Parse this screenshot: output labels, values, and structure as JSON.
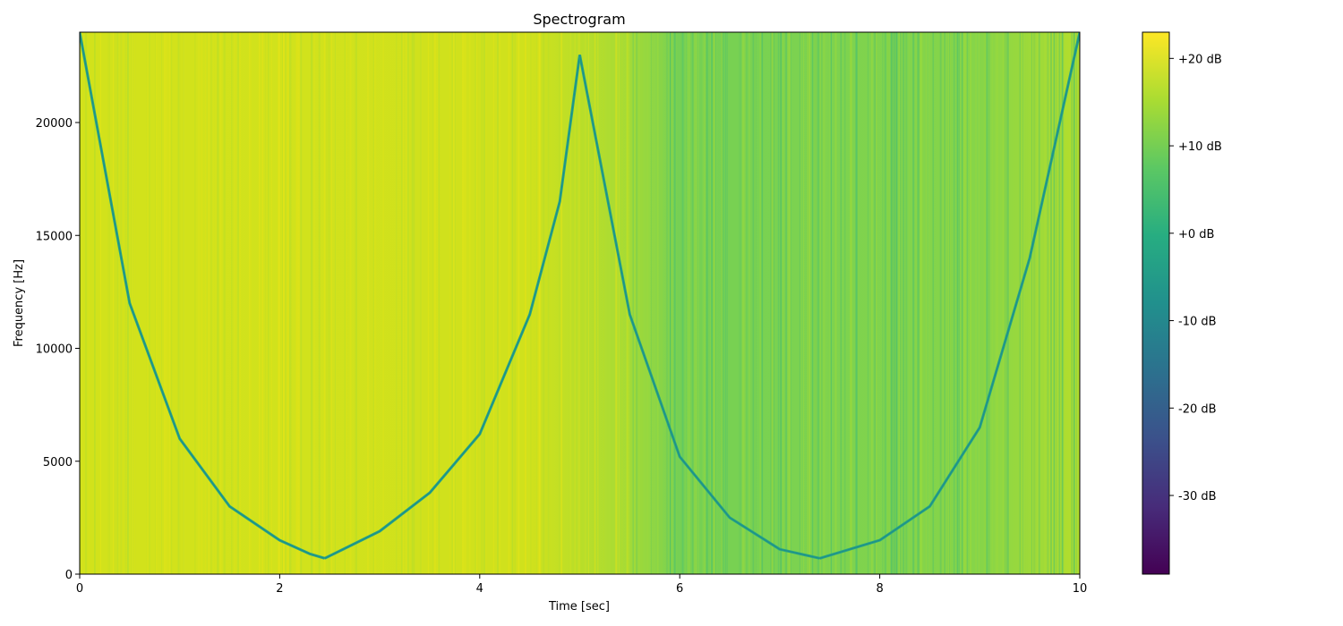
{
  "chart_data": [
    {
      "type": "heatmap",
      "title": "Spectrogram",
      "xlabel": "Time [sec]",
      "ylabel": "Frequency [Hz]",
      "xlim": [
        0,
        10
      ],
      "ylim": [
        0,
        24000
      ],
      "x_ticks": [
        0,
        2,
        4,
        6,
        8,
        10
      ],
      "x_tick_labels": [
        "0",
        "2",
        "4",
        "6",
        "8",
        "10"
      ],
      "y_ticks": [
        0,
        5000,
        10000,
        15000,
        20000
      ],
      "y_tick_labels": [
        "0",
        "5000",
        "10000",
        "15000",
        "20000"
      ],
      "colormap": "viridis",
      "series": [
        {
          "description": "descending chirp",
          "t": [
            0,
            0.5,
            1.0,
            1.5,
            2.0,
            2.3,
            2.45
          ],
          "f": [
            24000,
            12000,
            6000,
            3000,
            1500,
            900,
            700
          ]
        },
        {
          "description": "ascending chirp",
          "t": [
            2.45,
            3.0,
            3.5,
            4.0,
            4.5,
            4.8,
            5.0
          ],
          "f": [
            700,
            1900,
            3600,
            6200,
            11500,
            16500,
            23000
          ]
        },
        {
          "description": "descending chirp",
          "t": [
            5.0,
            5.5,
            6.0,
            6.5,
            7.0,
            7.4
          ],
          "f": [
            23000,
            11500,
            5200,
            2500,
            1100,
            700
          ]
        },
        {
          "description": "ascending chirp",
          "t": [
            7.4,
            8.0,
            8.5,
            9.0,
            9.5,
            10.0
          ],
          "f": [
            700,
            1500,
            3000,
            6500,
            14000,
            24000
          ]
        }
      ],
      "colorbar": {
        "range_db": [
          -39,
          23
        ],
        "ticks": [
          20,
          10,
          0,
          -10,
          -20,
          -30
        ],
        "tick_labels": [
          "+20 dB",
          "+10 dB",
          "+0 dB",
          "-10 dB",
          "-20 dB",
          "-30 dB"
        ]
      }
    }
  ]
}
